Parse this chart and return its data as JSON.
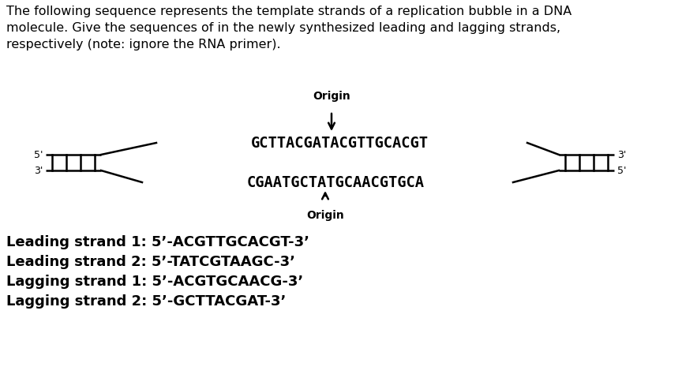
{
  "bg_color": "#ffffff",
  "paragraph_text": "The following sequence represents the template strands of a replication bubble in a DNA\nmolecule. Give the sequences of in the newly synthesized leading and lagging strands,\nrespectively (note: ignore the RNA primer).",
  "origin_top_label": "Origin",
  "origin_bottom_label": "Origin",
  "top_strand_seq": "GCTTACGATACGTTGCACGT",
  "bottom_strand_seq": "CGAATGCTATGCAACGTGCA",
  "label_5prime_left": "5'",
  "label_3prime_left": "3'",
  "label_3prime_right": "3'",
  "label_5prime_right": "5'",
  "answer_lines": [
    "Leading strand 1: 5’-ACGTTGCACGT-3’",
    "Leading strand 2: 5’-TATCGTAAGC-3’",
    "Lagging strand 1: 5’-ACGTGCAACG-3’",
    "Lagging strand 2: 5’-GCTTACGAT-3’"
  ],
  "font_size_paragraph": 11.5,
  "font_size_seq": 13.5,
  "font_size_origin": 10,
  "font_size_prime": 9,
  "font_size_answer": 13
}
